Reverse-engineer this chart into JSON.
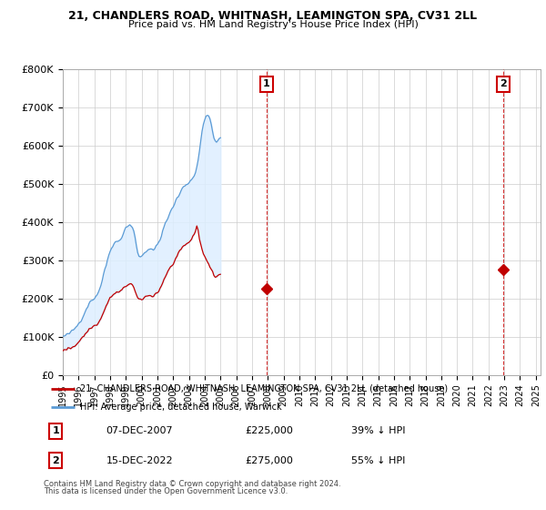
{
  "title1": "21, CHANDLERS ROAD, WHITNASH, LEAMINGTON SPA, CV31 2LL",
  "title2": "Price paid vs. HM Land Registry's House Price Index (HPI)",
  "ylim": [
    0,
    800000
  ],
  "yticks": [
    0,
    100000,
    200000,
    300000,
    400000,
    500000,
    600000,
    700000,
    800000
  ],
  "ytick_labels": [
    "£0",
    "£100K",
    "£200K",
    "£300K",
    "£400K",
    "£500K",
    "£600K",
    "£700K",
    "£800K"
  ],
  "xlim_start": 1995.0,
  "xlim_end": 2025.3,
  "hpi_color": "#5b9bd5",
  "hpi_fill_color": "#ddeeff",
  "price_color": "#c00000",
  "transaction1": {
    "date": "07-DEC-2007",
    "year": 2007.92,
    "price": 225000,
    "label": "1",
    "pct": "39%"
  },
  "transaction2": {
    "date": "15-DEC-2022",
    "year": 2022.95,
    "price": 275000,
    "label": "2",
    "pct": "55%"
  },
  "legend_line1": "21, CHANDLERS ROAD, WHITNASH, LEAMINGTON SPA, CV31 2LL (detached house)",
  "legend_line2": "HPI: Average price, detached house, Warwick",
  "footer1": "Contains HM Land Registry data © Crown copyright and database right 2024.",
  "footer2": "This data is licensed under the Open Government Licence v3.0.",
  "hpi_base_y": [
    100000,
    101500,
    103000,
    105000,
    107000,
    109500,
    112000,
    115000,
    118500,
    122500,
    127000,
    132000,
    137000,
    142500,
    148500,
    155000,
    162000,
    169500,
    177500,
    184000,
    189500,
    193000,
    196500,
    199500,
    203000,
    207500,
    213000,
    220000,
    229000,
    241000,
    255000,
    268000,
    280000,
    294000,
    308000,
    319000,
    329000,
    337000,
    343000,
    346000,
    347000,
    348000,
    350000,
    354000,
    359000,
    366000,
    374000,
    381000,
    387000,
    391000,
    393000,
    392000,
    389000,
    381000,
    366000,
    347000,
    328000,
    314000,
    306000,
    307000,
    312000,
    318000,
    323000,
    325000,
    323000,
    325000,
    328000,
    328000,
    325000,
    328000,
    333000,
    337000,
    341000,
    349000,
    359000,
    370000,
    381000,
    393000,
    402000,
    409000,
    416000,
    421000,
    429000,
    437000,
    444000,
    452000,
    460000,
    463000,
    469000,
    477000,
    484000,
    490000,
    494000,
    497000,
    500000,
    502000,
    505000,
    508000,
    512000,
    519000,
    526000,
    537000,
    553000,
    574000,
    599000,
    624000,
    644000,
    660000,
    672000,
    680000,
    683000,
    677000,
    661000,
    641000,
    624000,
    614000,
    609000,
    611000,
    614000,
    616000,
    619000
  ],
  "price_base_y": [
    65000,
    65500,
    66000,
    67000,
    68000,
    69500,
    71000,
    73000,
    75500,
    78000,
    81000,
    84500,
    88000,
    92000,
    96000,
    100000,
    104000,
    108500,
    113000,
    117000,
    120500,
    123000,
    125000,
    127000,
    129000,
    131500,
    134500,
    138000,
    143000,
    150000,
    159000,
    168000,
    176000,
    183500,
    190500,
    197000,
    202500,
    207000,
    210500,
    213000,
    214000,
    215000,
    216000,
    217500,
    219500,
    222500,
    226000,
    230000,
    234000,
    237000,
    239000,
    239000,
    237000,
    232000,
    223000,
    213000,
    203000,
    197000,
    193500,
    195000,
    198000,
    201500,
    204500,
    206000,
    204500,
    206000,
    208000,
    208000,
    206000,
    208500,
    211500,
    214000,
    217000,
    222000,
    229000,
    237000,
    245000,
    253500,
    261000,
    267000,
    273000,
    277000,
    283000,
    288000,
    294000,
    300500,
    307000,
    311500,
    317000,
    323000,
    329000,
    334000,
    337000,
    340000,
    343000,
    346000,
    349000,
    353000,
    357000,
    363000,
    371000,
    383000,
    398000,
    363000,
    345000,
    335000,
    323000,
    314000,
    306000,
    300000,
    293000,
    286000,
    278000,
    270000,
    264000,
    259000,
    256000,
    258000,
    261000,
    263000,
    265000
  ]
}
